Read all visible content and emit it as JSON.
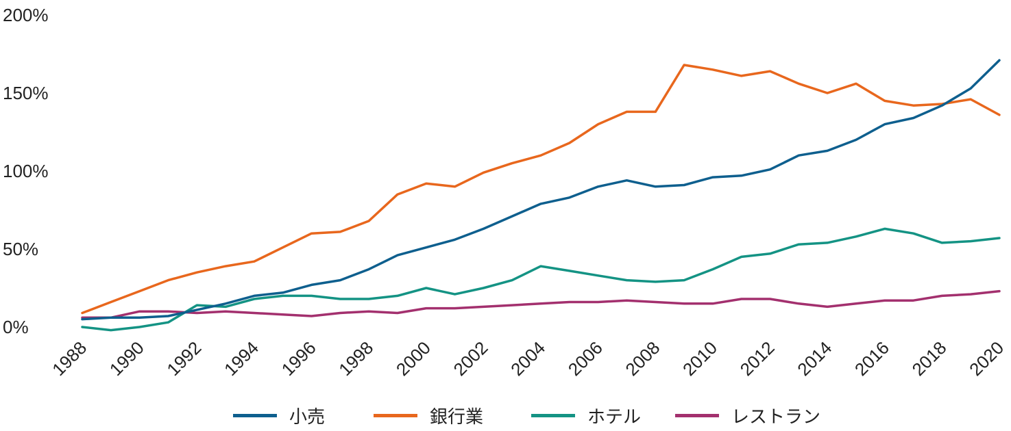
{
  "chart_data": {
    "type": "line",
    "x": [
      1988,
      1989,
      1990,
      1991,
      1992,
      1993,
      1994,
      1995,
      1996,
      1997,
      1998,
      1999,
      2000,
      2001,
      2002,
      2003,
      2004,
      2005,
      2006,
      2007,
      2008,
      2009,
      2010,
      2011,
      2012,
      2013,
      2014,
      2015,
      2016,
      2017,
      2018,
      2019,
      2020
    ],
    "x_tick_labels": [
      "1988",
      "1990",
      "1992",
      "1994",
      "1996",
      "1998",
      "2000",
      "2002",
      "2004",
      "2006",
      "2008",
      "2010",
      "2012",
      "2014",
      "2016",
      "2018",
      "2020"
    ],
    "y_tick_labels": [
      "0%",
      "50%",
      "100%",
      "150%",
      "200%"
    ],
    "ylim": [
      0,
      2.0
    ],
    "xlim": [
      1988,
      2020
    ],
    "title": "",
    "xlabel": "",
    "ylabel": "",
    "legend_position": "bottom",
    "grid": false,
    "series": [
      {
        "name": "小売",
        "color": "#0e5f8e",
        "values": [
          0.05,
          0.06,
          0.06,
          0.07,
          0.11,
          0.15,
          0.2,
          0.22,
          0.27,
          0.3,
          0.37,
          0.46,
          0.51,
          0.56,
          0.63,
          0.71,
          0.79,
          0.83,
          0.9,
          0.94,
          0.9,
          0.91,
          0.96,
          0.97,
          1.01,
          1.1,
          1.13,
          1.2,
          1.3,
          1.34,
          1.42,
          1.53,
          1.71
        ]
      },
      {
        "name": "銀行業",
        "color": "#e8671d",
        "values": [
          0.09,
          0.16,
          0.23,
          0.3,
          0.35,
          0.39,
          0.42,
          0.51,
          0.6,
          0.61,
          0.68,
          0.85,
          0.92,
          0.9,
          0.99,
          1.05,
          1.1,
          1.18,
          1.3,
          1.38,
          1.38,
          1.68,
          1.65,
          1.61,
          1.64,
          1.56,
          1.5,
          1.56,
          1.45,
          1.42,
          1.43,
          1.46,
          1.36
        ]
      },
      {
        "name": "ホテル",
        "color": "#149384",
        "values": [
          0.0,
          -0.02,
          0.0,
          0.03,
          0.14,
          0.13,
          0.18,
          0.2,
          0.2,
          0.18,
          0.18,
          0.2,
          0.25,
          0.21,
          0.25,
          0.3,
          0.39,
          0.36,
          0.33,
          0.3,
          0.29,
          0.3,
          0.37,
          0.45,
          0.47,
          0.53,
          0.54,
          0.58,
          0.63,
          0.6,
          0.54,
          0.55,
          0.57
        ]
      },
      {
        "name": "レストラン",
        "color": "#a3306e",
        "values": [
          0.06,
          0.06,
          0.1,
          0.1,
          0.09,
          0.1,
          0.09,
          0.08,
          0.07,
          0.09,
          0.1,
          0.09,
          0.12,
          0.12,
          0.13,
          0.14,
          0.15,
          0.16,
          0.16,
          0.17,
          0.16,
          0.15,
          0.15,
          0.18,
          0.18,
          0.15,
          0.13,
          0.15,
          0.17,
          0.17,
          0.2,
          0.21,
          0.23
        ]
      }
    ]
  }
}
